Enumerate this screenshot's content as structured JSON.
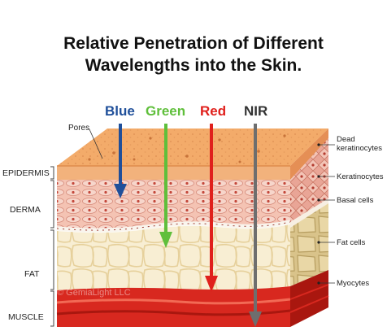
{
  "title": {
    "line1": "Relative Penetration of Different",
    "line2": "Wavelengths into the Skin."
  },
  "wavelengths": [
    {
      "label": "Blue",
      "color": "#1f4f9a"
    },
    {
      "label": "Green",
      "color": "#5fbf3b"
    },
    {
      "label": "Red",
      "color": "#e0201c"
    },
    {
      "label": "NIR",
      "color": "#6e6e6e"
    }
  ],
  "left_labels": {
    "pores": "Pores",
    "epidermis": "EPIDERMIS",
    "derma": "DERMA",
    "fat": "FAT",
    "muscle": "MUSCLE"
  },
  "right_labels": {
    "dead_line1": "Dead",
    "dead_line2": "keratinocytes",
    "keratinocytes": "Keratinocytes",
    "basal": "Basal cells",
    "fat_cells": "Fat cells",
    "myocytes": "Myocytes"
  },
  "watermark": "© GemiaLight LLC",
  "colors": {
    "skin_top": "#f3a968",
    "derma": "#f4c7b8",
    "fat": "#f8eed2",
    "muscle": "#d5261e"
  }
}
